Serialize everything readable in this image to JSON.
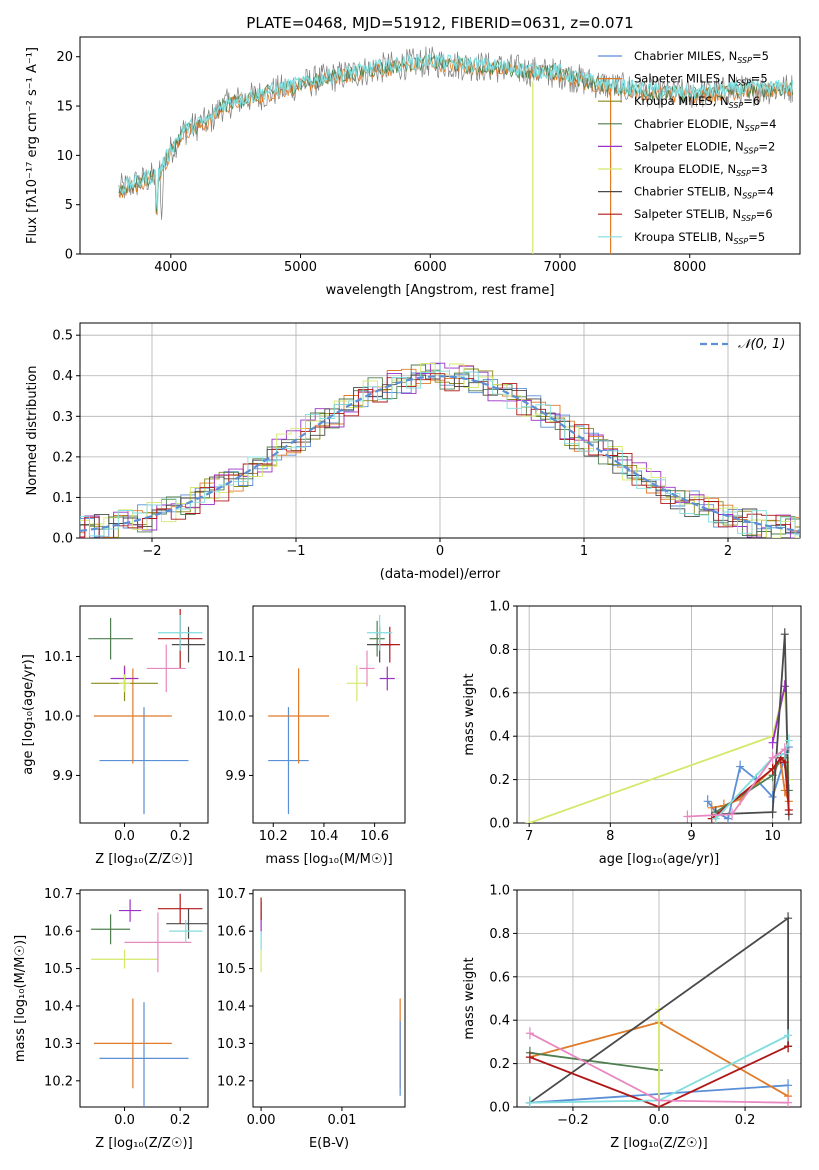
{
  "figure": {
    "title": "PLATE=0468, MJD=51912, FIBERID=0631, z=0.071"
  },
  "colors": {
    "Chabrier MILES": "#5b8fd6",
    "Salpeter MILES": "#e07b2a",
    "Kroupa MILES": "#8a8a1a",
    "Chabrier ELODIE": "#4f7f4f",
    "Salpeter ELODIE": "#9b30c8",
    "Kroupa ELODIE": "#d4e86a",
    "Chabrier STELIB": "#4a4a4a",
    "Salpeter STELIB": "#b01818",
    "Kroupa STELIB": "#80dede",
    "pink": "#e888c0",
    "data": "#808080",
    "normal": "#5b8fd6"
  },
  "chart_data": [
    {
      "panel": "spectrum",
      "type": "line",
      "title": "PLATE=0468, MJD=51912, FIBERID=0631, z=0.071",
      "xlabel": "wavelength [Angstrom, rest frame]",
      "ylabel": "Flux [fλ10⁻¹⁷ erg cm⁻² s⁻¹ A⁻¹]",
      "xlim": [
        3300,
        8850
      ],
      "ylim": [
        0,
        22
      ],
      "xticks": [
        4000,
        5000,
        6000,
        7000,
        8000
      ],
      "yticks": [
        0,
        5,
        10,
        15,
        20
      ],
      "continuum": {
        "x": [
          3600,
          3700,
          3800,
          3900,
          4000,
          4100,
          4200,
          4300,
          4400,
          4500,
          4600,
          4800,
          5000,
          5200,
          5400,
          5600,
          5800,
          6000,
          6200,
          6400,
          6600,
          6800,
          7000,
          7200,
          7400,
          7600,
          7800,
          8000,
          8200,
          8400,
          8800
        ],
        "y": [
          6.5,
          7,
          7.5,
          8,
          10.5,
          12.5,
          13,
          13.5,
          15,
          15.5,
          15.8,
          16.5,
          17.2,
          17.8,
          18.3,
          18.8,
          19.2,
          19.5,
          19.2,
          19,
          18.8,
          18.5,
          18.3,
          17.5,
          17,
          16.6,
          16.3,
          16.2,
          16.4,
          16.6,
          16.8
        ]
      },
      "legend": [
        {
          "model": "Chabrier MILES",
          "n": "5"
        },
        {
          "model": "Salpeter MILES",
          "n": "5"
        },
        {
          "model": "Kroupa MILES",
          "n": "6"
        },
        {
          "model": "Chabrier ELODIE",
          "n": "4"
        },
        {
          "model": "Salpeter ELODIE",
          "n": "2"
        },
        {
          "model": "Kroupa ELODIE",
          "n": "3"
        },
        {
          "model": "Chabrier STELIB",
          "n": "4"
        },
        {
          "model": "Salpeter STELIB",
          "n": "6"
        },
        {
          "model": "Kroupa STELIB",
          "n": "5"
        }
      ],
      "legend_position": "top-right"
    },
    {
      "panel": "residuals",
      "type": "line",
      "xlabel": "(data-model)/error",
      "ylabel": "Normed distribution",
      "xlim": [
        -2.5,
        2.5
      ],
      "ylim": [
        0,
        0.53
      ],
      "xticks": [
        -2,
        -1,
        0,
        1,
        2
      ],
      "yticks": [
        0.0,
        0.1,
        0.2,
        0.3,
        0.4,
        0.5
      ],
      "legend": [
        "𝒩(0, 1)"
      ],
      "legend_position": "top-right",
      "grid": true
    },
    {
      "panel": "age_vs_Z",
      "type": "scatter",
      "xlabel": "Z [log₁₀(Z/Z☉)]",
      "ylabel": "age [log₁₀(age/yr)]",
      "xlim": [
        -0.16,
        0.3
      ],
      "ylim": [
        9.82,
        10.185
      ],
      "xticks": [
        0.0,
        0.2
      ],
      "yticks": [
        9.9,
        10.0,
        10.1
      ],
      "points": [
        {
          "model": "Chabrier MILES",
          "x": 0.07,
          "y": 9.925,
          "xerr": 0.16,
          "yerr": 0.09
        },
        {
          "model": "Salpeter MILES",
          "x": 0.03,
          "y": 10.0,
          "xerr": 0.14,
          "yerr": 0.08
        },
        {
          "model": "Kroupa MILES",
          "x": 0.0,
          "y": 10.055,
          "xerr": 0.12,
          "yerr": 0.03
        },
        {
          "model": "Chabrier ELODIE",
          "x": -0.05,
          "y": 10.13,
          "xerr": 0.08,
          "yerr": 0.035
        },
        {
          "model": "Salpeter ELODIE",
          "x": 0.0,
          "y": 10.063,
          "xerr": 0.05,
          "yerr": 0.02
        },
        {
          "model": "Kroupa ELODIE",
          "x": 0.0,
          "y": 10.055,
          "xerr": 0.02,
          "yerr": 0.015
        },
        {
          "model": "Chabrier STELIB",
          "x": 0.23,
          "y": 10.12,
          "xerr": 0.06,
          "yerr": 0.03
        },
        {
          "model": "Salpeter STELIB",
          "x": 0.2,
          "y": 10.13,
          "xerr": 0.08,
          "yerr": 0.05
        },
        {
          "model": "Kroupa STELIB",
          "x": 0.2,
          "y": 10.14,
          "xerr": 0.08,
          "yerr": 0.03
        },
        {
          "model": "pink",
          "x": 0.15,
          "y": 10.08,
          "xerr": 0.07,
          "yerr": 0.04
        }
      ]
    },
    {
      "panel": "age_vs_mass",
      "type": "scatter",
      "xlabel": "mass [log₁₀(M/M☉)]",
      "xlim": [
        10.12,
        10.72
      ],
      "ylim": [
        9.82,
        10.185
      ],
      "xticks": [
        10.2,
        10.4,
        10.6
      ],
      "yticks": [
        9.9,
        10.0,
        10.1
      ],
      "points": [
        {
          "model": "Chabrier MILES",
          "x": 10.26,
          "y": 9.925,
          "xerr": 0.08,
          "yerr": 0.09
        },
        {
          "model": "Salpeter MILES",
          "x": 10.3,
          "y": 10.0,
          "xerr": 0.12,
          "yerr": 0.08
        },
        {
          "model": "Kroupa ELODIE",
          "x": 10.53,
          "y": 10.055,
          "xerr": 0.04,
          "yerr": 0.03
        },
        {
          "model": "Chabrier ELODIE",
          "x": 10.61,
          "y": 10.13,
          "xerr": 0.03,
          "yerr": 0.03
        },
        {
          "model": "Salpeter ELODIE",
          "x": 10.65,
          "y": 10.063,
          "xerr": 0.03,
          "yerr": 0.02
        },
        {
          "model": "pink",
          "x": 10.57,
          "y": 10.08,
          "xerr": 0.03,
          "yerr": 0.03
        },
        {
          "model": "Chabrier STELIB",
          "x": 10.62,
          "y": 10.12,
          "xerr": 0.05,
          "yerr": 0.03
        },
        {
          "model": "Salpeter STELIB",
          "x": 10.66,
          "y": 10.12,
          "xerr": 0.04,
          "yerr": 0.03
        },
        {
          "model": "Kroupa STELIB",
          "x": 10.62,
          "y": 10.14,
          "xerr": 0.05,
          "yerr": 0.03
        }
      ]
    },
    {
      "panel": "mass_weight_vs_age",
      "type": "line",
      "xlabel": "age [log₁₀(age/yr)]",
      "ylabel": "mass weight",
      "xlim": [
        6.85,
        10.35
      ],
      "ylim": [
        0,
        1.0
      ],
      "xticks": [
        7,
        8,
        9,
        10
      ],
      "yticks": [
        0.0,
        0.2,
        0.4,
        0.6,
        0.8,
        1.0
      ],
      "grid": true,
      "series": [
        {
          "model": "Chabrier MILES",
          "x": [
            9.2,
            9.3,
            9.45,
            9.6,
            9.8,
            10.0,
            10.15,
            10.2
          ],
          "y": [
            0.1,
            0.05,
            0.02,
            0.26,
            0.2,
            0.12,
            0.3,
            0.35
          ]
        },
        {
          "model": "Salpeter MILES",
          "x": [
            9.25,
            9.4,
            9.6,
            10.0,
            10.1,
            10.15,
            10.2
          ],
          "y": [
            0.07,
            0.08,
            0.11,
            0.25,
            0.28,
            0.15,
            0.1
          ]
        },
        {
          "model": "Kroupa ELODIE",
          "x": [
            7.0,
            10.0,
            10.15,
            10.2
          ],
          "y": [
            0.0,
            0.4,
            0.63,
            0.2
          ]
        },
        {
          "model": "Chabrier ELODIE",
          "x": [
            9.3,
            10.0,
            10.1,
            10.15,
            10.2
          ],
          "y": [
            0.05,
            0.22,
            0.3,
            0.3,
            0.15
          ]
        },
        {
          "model": "Salpeter ELODIE",
          "x": [
            10.0,
            10.15
          ],
          "y": [
            0.37,
            0.63
          ]
        },
        {
          "model": "Chabrier STELIB",
          "x": [
            9.3,
            10.0,
            10.15,
            10.2
          ],
          "y": [
            0.04,
            0.05,
            0.87,
            0.04
          ]
        },
        {
          "model": "Salpeter STELIB",
          "x": [
            9.25,
            10.0,
            10.1,
            10.15,
            10.2
          ],
          "y": [
            0.02,
            0.25,
            0.3,
            0.28,
            0.06
          ]
        },
        {
          "model": "Kroupa STELIB",
          "x": [
            9.3,
            10.0,
            10.15,
            10.2
          ],
          "y": [
            0.02,
            0.3,
            0.32,
            0.38
          ]
        },
        {
          "model": "pink",
          "x": [
            8.95,
            9.5,
            10.0,
            10.15
          ],
          "y": [
            0.03,
            0.04,
            0.3,
            0.34
          ]
        }
      ]
    },
    {
      "panel": "mass_vs_Z",
      "type": "scatter",
      "xlabel": "Z [log₁₀(Z/Z☉)]",
      "ylabel": "mass [log₁₀(M/M☉)]",
      "xlim": [
        -0.16,
        0.3
      ],
      "ylim": [
        10.13,
        10.71
      ],
      "xticks": [
        0.0,
        0.2
      ],
      "yticks": [
        10.2,
        10.3,
        10.4,
        10.5,
        10.6,
        10.7
      ],
      "points": [
        {
          "model": "Chabrier MILES",
          "x": 0.07,
          "y": 10.26,
          "xerr": 0.16,
          "yerr": 0.15
        },
        {
          "model": "Salpeter MILES",
          "x": 0.03,
          "y": 10.3,
          "xerr": 0.14,
          "yerr": 0.12
        },
        {
          "model": "Kroupa ELODIE",
          "x": 0.0,
          "y": 10.525,
          "xerr": 0.12,
          "yerr": 0.025
        },
        {
          "model": "Chabrier ELODIE",
          "x": -0.05,
          "y": 10.605,
          "xerr": 0.07,
          "yerr": 0.04
        },
        {
          "model": "Salpeter ELODIE",
          "x": 0.02,
          "y": 10.655,
          "xerr": 0.04,
          "yerr": 0.03
        },
        {
          "model": "pink",
          "x": 0.12,
          "y": 10.57,
          "xerr": 0.12,
          "yerr": 0.08
        },
        {
          "model": "Chabrier STELIB",
          "x": 0.23,
          "y": 10.62,
          "xerr": 0.08,
          "yerr": 0.04
        },
        {
          "model": "Salpeter STELIB",
          "x": 0.2,
          "y": 10.66,
          "xerr": 0.08,
          "yerr": 0.04
        },
        {
          "model": "Kroupa STELIB",
          "x": 0.22,
          "y": 10.6,
          "xerr": 0.06,
          "yerr": 0.03
        }
      ]
    },
    {
      "panel": "mass_vs_EBV",
      "type": "scatter",
      "xlabel": "E(B-V)",
      "xlim": [
        -0.001,
        0.0178
      ],
      "ylim": [
        10.13,
        10.71
      ],
      "xticks": [
        0.0,
        0.01
      ],
      "yticks": [
        10.2,
        10.3,
        10.4,
        10.5,
        10.6,
        10.7
      ],
      "points": [
        {
          "model": "Kroupa ELODIE",
          "x": 0.0,
          "y": 10.55,
          "xerr": 0.0,
          "yerr": 0.06
        },
        {
          "model": "Kroupa STELIB",
          "x": 0.0,
          "y": 10.6,
          "xerr": 0.0,
          "yerr": 0.05
        },
        {
          "model": "Salpeter ELODIE",
          "x": 0.0,
          "y": 10.64,
          "xerr": 0.0,
          "yerr": 0.04
        },
        {
          "model": "Salpeter STELIB",
          "x": 0.0,
          "y": 10.66,
          "xerr": 0.0,
          "yerr": 0.03
        },
        {
          "model": "Salpeter MILES",
          "x": 0.0172,
          "y": 10.3,
          "xerr": 0.0,
          "yerr": 0.12
        },
        {
          "model": "Chabrier MILES",
          "x": 0.0172,
          "y": 10.26,
          "xerr": 0.0,
          "yerr": 0.1
        }
      ]
    },
    {
      "panel": "mass_weight_vs_Z",
      "type": "line",
      "xlabel": "Z [log₁₀(Z/Z☉)]",
      "ylabel": "mass weight",
      "xlim": [
        -0.33,
        0.33
      ],
      "ylim": [
        0,
        1.0
      ],
      "xticks": [
        -0.2,
        0.0,
        0.2
      ],
      "yticks": [
        0.0,
        0.2,
        0.4,
        0.6,
        0.8,
        1.0
      ],
      "grid": true,
      "series": [
        {
          "model": "Chabrier MILES",
          "x": [
            -0.3,
            0.0,
            0.3
          ],
          "y": [
            0.02,
            0.06,
            0.1
          ]
        },
        {
          "model": "Salpeter MILES",
          "x": [
            -0.3,
            0.0,
            0.3
          ],
          "y": [
            0.23,
            0.39,
            0.05
          ]
        },
        {
          "model": "Chabrier ELODIE",
          "x": [
            -0.3,
            0.0
          ],
          "y": [
            0.25,
            0.17
          ]
        },
        {
          "model": "Kroupa ELODIE",
          "x": [
            0.0,
            0.0
          ],
          "y": [
            0.0,
            0.45
          ]
        },
        {
          "model": "Chabrier STELIB",
          "x": [
            -0.3,
            0.3,
            0.3
          ],
          "y": [
            0.02,
            0.87,
            0.28
          ]
        },
        {
          "model": "Salpeter STELIB",
          "x": [
            -0.3,
            0.0,
            0.3
          ],
          "y": [
            0.23,
            0.0,
            0.28
          ]
        },
        {
          "model": "Kroupa STELIB",
          "x": [
            -0.3,
            0.0,
            0.3
          ],
          "y": [
            0.02,
            0.03,
            0.33
          ]
        },
        {
          "model": "pink",
          "x": [
            -0.3,
            0.0,
            0.3
          ],
          "y": [
            0.34,
            0.03,
            0.02
          ]
        }
      ]
    }
  ]
}
